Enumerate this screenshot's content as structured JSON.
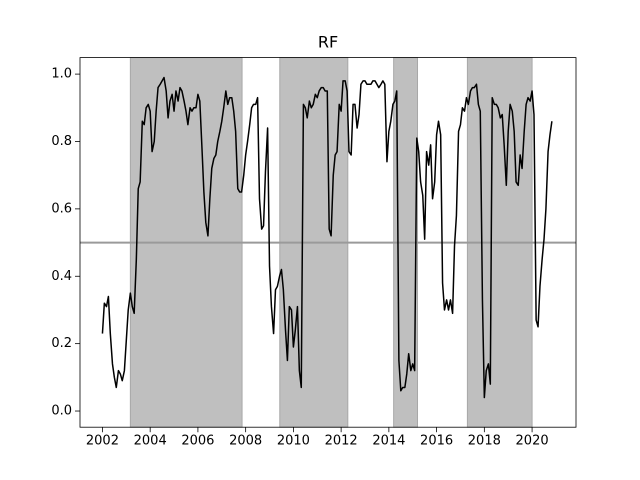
{
  "chart_data": {
    "type": "line",
    "title": "RF",
    "color": "#000000",
    "shade_color": "#bfbfbf",
    "shaded_regions": [
      [
        2003.17,
        2007.85
      ],
      [
        2009.43,
        2012.28
      ],
      [
        2014.2,
        2015.2
      ],
      [
        2017.29,
        2020.0
      ]
    ],
    "hline": 0.5,
    "hline_color": "#9a9a9a",
    "xlim": [
      2001.06,
      2021.84
    ],
    "xticks": [
      2002,
      2004,
      2006,
      2008,
      2010,
      2012,
      2014,
      2016,
      2018,
      2020
    ],
    "ylim": [
      -0.048,
      1.049
    ],
    "yticks": [
      {
        "value": 0,
        "label": "0.0"
      },
      0.2,
      0.4,
      0.6,
      0.8,
      {
        "value": 1,
        "label": "1.0"
      }
    ],
    "x": [
      2002.0,
      2002.08,
      2002.17,
      2002.25,
      2002.33,
      2002.42,
      2002.5,
      2002.58,
      2002.67,
      2002.75,
      2002.83,
      2002.92,
      2003.0,
      2003.08,
      2003.17,
      2003.25,
      2003.33,
      2003.42,
      2003.5,
      2003.58,
      2003.67,
      2003.75,
      2003.83,
      2003.92,
      2004.0,
      2004.08,
      2004.17,
      2004.25,
      2004.33,
      2004.42,
      2004.5,
      2004.58,
      2004.67,
      2004.75,
      2004.83,
      2004.92,
      2005.0,
      2005.08,
      2005.17,
      2005.25,
      2005.33,
      2005.42,
      2005.5,
      2005.58,
      2005.67,
      2005.75,
      2005.83,
      2005.92,
      2006.0,
      2006.08,
      2006.17,
      2006.25,
      2006.33,
      2006.42,
      2006.5,
      2006.58,
      2006.67,
      2006.75,
      2006.83,
      2006.92,
      2007.0,
      2007.08,
      2007.17,
      2007.25,
      2007.33,
      2007.42,
      2007.5,
      2007.58,
      2007.67,
      2007.75,
      2007.83,
      2007.92,
      2008.0,
      2008.08,
      2008.17,
      2008.25,
      2008.33,
      2008.42,
      2008.5,
      2008.58,
      2008.67,
      2008.75,
      2008.83,
      2008.92,
      2009.0,
      2009.08,
      2009.17,
      2009.25,
      2009.33,
      2009.42,
      2009.5,
      2009.58,
      2009.67,
      2009.75,
      2009.83,
      2009.92,
      2010.0,
      2010.08,
      2010.17,
      2010.25,
      2010.33,
      2010.42,
      2010.5,
      2010.58,
      2010.67,
      2010.75,
      2010.83,
      2010.92,
      2011.0,
      2011.08,
      2011.17,
      2011.25,
      2011.33,
      2011.42,
      2011.5,
      2011.58,
      2011.67,
      2011.75,
      2011.83,
      2011.92,
      2012.0,
      2012.08,
      2012.17,
      2012.25,
      2012.33,
      2012.42,
      2012.5,
      2012.58,
      2012.67,
      2012.75,
      2012.83,
      2012.92,
      2013.0,
      2013.08,
      2013.17,
      2013.25,
      2013.33,
      2013.42,
      2013.5,
      2013.58,
      2013.67,
      2013.75,
      2013.83,
      2013.92,
      2014.0,
      2014.08,
      2014.17,
      2014.25,
      2014.33,
      2014.42,
      2014.5,
      2014.58,
      2014.67,
      2014.75,
      2014.83,
      2014.92,
      2015.0,
      2015.08,
      2015.17,
      2015.25,
      2015.33,
      2015.42,
      2015.5,
      2015.58,
      2015.67,
      2015.75,
      2015.83,
      2015.92,
      2016.0,
      2016.08,
      2016.17,
      2016.25,
      2016.33,
      2016.42,
      2016.5,
      2016.58,
      2016.67,
      2016.75,
      2016.83,
      2016.92,
      2017.0,
      2017.08,
      2017.17,
      2017.25,
      2017.33,
      2017.42,
      2017.5,
      2017.58,
      2017.67,
      2017.75,
      2017.83,
      2017.92,
      2018.0,
      2018.08,
      2018.17,
      2018.25,
      2018.33,
      2018.42,
      2018.5,
      2018.58,
      2018.67,
      2018.75,
      2018.83,
      2018.92,
      2019.0,
      2019.08,
      2019.17,
      2019.25,
      2019.33,
      2019.42,
      2019.5,
      2019.58,
      2019.67,
      2019.75,
      2019.83,
      2019.92,
      2020.0,
      2020.08,
      2020.17,
      2020.25,
      2020.33,
      2020.42,
      2020.5,
      2020.58,
      2020.67,
      2020.75,
      2020.83
    ],
    "values": [
      0.23,
      0.32,
      0.31,
      0.34,
      0.23,
      0.14,
      0.1,
      0.07,
      0.12,
      0.11,
      0.09,
      0.12,
      0.21,
      0.3,
      0.35,
      0.31,
      0.29,
      0.45,
      0.66,
      0.68,
      0.86,
      0.85,
      0.9,
      0.91,
      0.89,
      0.77,
      0.8,
      0.89,
      0.96,
      0.97,
      0.98,
      0.99,
      0.95,
      0.87,
      0.92,
      0.94,
      0.89,
      0.95,
      0.92,
      0.96,
      0.95,
      0.92,
      0.89,
      0.85,
      0.9,
      0.89,
      0.9,
      0.9,
      0.94,
      0.92,
      0.78,
      0.65,
      0.56,
      0.52,
      0.63,
      0.72,
      0.75,
      0.76,
      0.8,
      0.83,
      0.86,
      0.9,
      0.95,
      0.91,
      0.93,
      0.93,
      0.89,
      0.83,
      0.66,
      0.65,
      0.65,
      0.7,
      0.76,
      0.8,
      0.85,
      0.9,
      0.91,
      0.91,
      0.93,
      0.63,
      0.54,
      0.55,
      0.71,
      0.84,
      0.43,
      0.31,
      0.23,
      0.36,
      0.37,
      0.4,
      0.42,
      0.36,
      0.24,
      0.15,
      0.31,
      0.3,
      0.19,
      0.24,
      0.31,
      0.12,
      0.07,
      0.91,
      0.9,
      0.87,
      0.92,
      0.9,
      0.91,
      0.94,
      0.93,
      0.95,
      0.96,
      0.96,
      0.95,
      0.95,
      0.54,
      0.52,
      0.7,
      0.76,
      0.77,
      0.91,
      0.89,
      0.98,
      0.98,
      0.95,
      0.77,
      0.76,
      0.91,
      0.91,
      0.84,
      0.88,
      0.97,
      0.98,
      0.98,
      0.97,
      0.97,
      0.97,
      0.98,
      0.98,
      0.97,
      0.96,
      0.97,
      0.98,
      0.97,
      0.74,
      0.83,
      0.86,
      0.91,
      0.92,
      0.95,
      0.15,
      0.06,
      0.07,
      0.07,
      0.11,
      0.17,
      0.12,
      0.14,
      0.12,
      0.81,
      0.77,
      0.68,
      0.64,
      0.51,
      0.77,
      0.73,
      0.79,
      0.63,
      0.68,
      0.82,
      0.86,
      0.82,
      0.38,
      0.3,
      0.33,
      0.3,
      0.33,
      0.29,
      0.49,
      0.58,
      0.83,
      0.85,
      0.9,
      0.89,
      0.93,
      0.91,
      0.95,
      0.96,
      0.96,
      0.97,
      0.91,
      0.89,
      0.33,
      0.04,
      0.12,
      0.14,
      0.08,
      0.93,
      0.91,
      0.91,
      0.9,
      0.87,
      0.88,
      0.79,
      0.67,
      0.83,
      0.91,
      0.89,
      0.83,
      0.68,
      0.67,
      0.76,
      0.72,
      0.83,
      0.91,
      0.93,
      0.92,
      0.95,
      0.88,
      0.27,
      0.25,
      0.37,
      0.45,
      0.51,
      0.6,
      0.77,
      0.82,
      0.86
    ]
  }
}
